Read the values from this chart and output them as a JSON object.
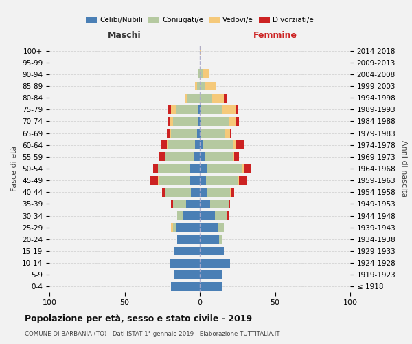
{
  "age_groups": [
    "100+",
    "95-99",
    "90-94",
    "85-89",
    "80-84",
    "75-79",
    "70-74",
    "65-69",
    "60-64",
    "55-59",
    "50-54",
    "45-49",
    "40-44",
    "35-39",
    "30-34",
    "25-29",
    "20-24",
    "15-19",
    "10-14",
    "5-9",
    "0-4"
  ],
  "birth_years": [
    "≤ 1918",
    "1919-1923",
    "1924-1928",
    "1929-1933",
    "1934-1938",
    "1939-1943",
    "1944-1948",
    "1949-1953",
    "1954-1958",
    "1959-1963",
    "1964-1968",
    "1969-1973",
    "1974-1978",
    "1979-1983",
    "1984-1988",
    "1989-1993",
    "1994-1998",
    "1999-2003",
    "2004-2008",
    "2009-2013",
    "2014-2018"
  ],
  "males": {
    "celibi": [
      0,
      0,
      0,
      0,
      0,
      1,
      1,
      2,
      3,
      4,
      7,
      7,
      6,
      9,
      11,
      16,
      15,
      17,
      20,
      17,
      19
    ],
    "coniugati": [
      0,
      0,
      1,
      2,
      8,
      15,
      17,
      17,
      18,
      19,
      21,
      20,
      17,
      9,
      4,
      2,
      0,
      0,
      0,
      0,
      0
    ],
    "vedovi": [
      0,
      0,
      0,
      1,
      2,
      3,
      2,
      1,
      1,
      0,
      0,
      1,
      0,
      0,
      0,
      1,
      0,
      0,
      0,
      0,
      0
    ],
    "divorziati": [
      0,
      0,
      0,
      0,
      0,
      2,
      1,
      2,
      4,
      4,
      3,
      5,
      2,
      1,
      0,
      0,
      0,
      0,
      0,
      0,
      0
    ]
  },
  "females": {
    "nubili": [
      0,
      0,
      0,
      0,
      0,
      1,
      1,
      1,
      2,
      3,
      5,
      4,
      5,
      7,
      10,
      12,
      13,
      16,
      20,
      15,
      15
    ],
    "coniugate": [
      0,
      0,
      2,
      3,
      8,
      14,
      18,
      16,
      20,
      19,
      23,
      21,
      15,
      12,
      8,
      4,
      2,
      0,
      0,
      0,
      0
    ],
    "vedove": [
      1,
      0,
      4,
      8,
      8,
      9,
      5,
      3,
      2,
      1,
      1,
      1,
      1,
      0,
      0,
      0,
      0,
      0,
      0,
      0,
      0
    ],
    "divorziate": [
      0,
      0,
      0,
      0,
      2,
      1,
      2,
      1,
      5,
      3,
      5,
      5,
      2,
      1,
      1,
      0,
      0,
      0,
      0,
      0,
      0
    ]
  },
  "colors": {
    "celibi": "#4a7fb5",
    "coniugati": "#b5c9a0",
    "vedovi": "#f5c97a",
    "divorziati": "#cc2222"
  },
  "title": "Popolazione per età, sesso e stato civile - 2019",
  "subtitle": "COMUNE DI BARBANIA (TO) - Dati ISTAT 1° gennaio 2019 - Elaborazione TUTTITALIA.IT",
  "xlabel_left": "Maschi",
  "xlabel_right": "Femmine",
  "ylabel_left": "Fasce di età",
  "ylabel_right": "Anni di nascita",
  "xlim": 100,
  "legend_labels": [
    "Celibi/Nubili",
    "Coniugati/e",
    "Vedovi/e",
    "Divorziati/e"
  ],
  "background_color": "#f2f2f2"
}
